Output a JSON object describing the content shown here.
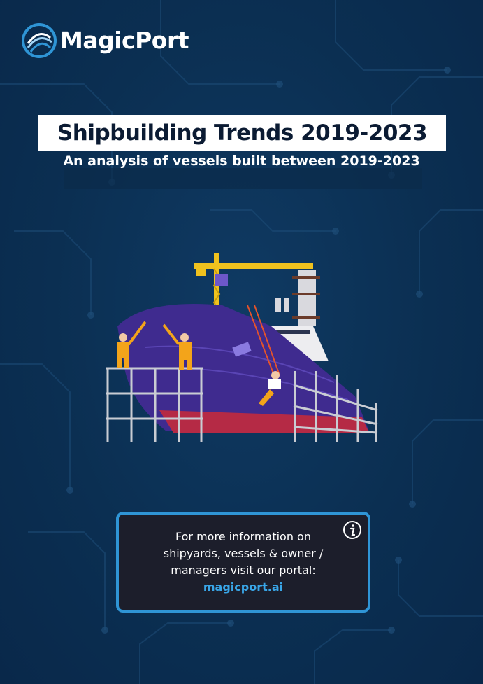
{
  "brand": {
    "name": "MagicPort"
  },
  "header": {
    "title": "Shipbuilding Trends 2019-2023",
    "subtitle": "An analysis of vessels built between 2019-2023"
  },
  "info": {
    "lines": [
      "For more information on",
      "shipyards, vessels & owner /",
      "managers visit our portal:"
    ],
    "link": "magicport.ai"
  },
  "colors": {
    "background": "#0b2f52",
    "accent": "#2f95d6",
    "link": "#39a6e8",
    "hull": "#3f2b8f",
    "hull_bottom": "#b52a45",
    "crane": "#f0c21e"
  }
}
